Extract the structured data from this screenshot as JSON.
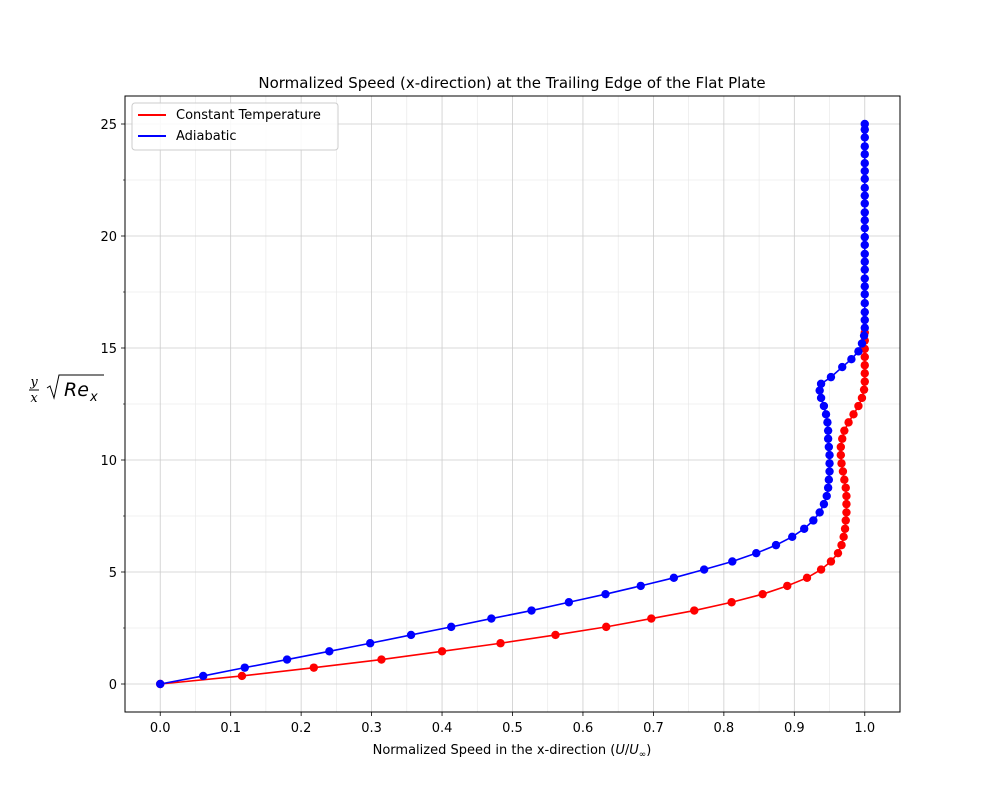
{
  "chart_data": {
    "type": "line",
    "title": "Normalized Speed (x-direction) at the Trailing Edge of the Flat Plate",
    "xlabel": "Normalized Speed in the x-direction (U/U∞)",
    "ylabel": "y/x √Reₓ",
    "xlim": [
      -0.05,
      1.05
    ],
    "ylim": [
      -1.25,
      26.25
    ],
    "xticks": [
      0.0,
      0.1,
      0.2,
      0.3,
      0.4,
      0.5,
      0.6,
      0.7,
      0.8,
      0.9,
      1.0
    ],
    "xtick_labels": [
      "0.0",
      "0.1",
      "0.2",
      "0.3",
      "0.4",
      "0.5",
      "0.6",
      "0.7",
      "0.8",
      "0.9",
      "1.0"
    ],
    "yticks": [
      0,
      5,
      10,
      15,
      20,
      25
    ],
    "ytick_labels": [
      "0",
      "5",
      "10",
      "15",
      "20",
      "25"
    ],
    "grid": true,
    "minor_grid": true,
    "legend_position": "top-left",
    "series": [
      {
        "name": "Constant Temperature",
        "color": "#ff0000",
        "marker": "circle",
        "points": [
          [
            0.0,
            0.0
          ],
          [
            0.116,
            0.36
          ],
          [
            0.218,
            0.73
          ],
          [
            0.314,
            1.09
          ],
          [
            0.4,
            1.46
          ],
          [
            0.483,
            1.82
          ],
          [
            0.561,
            2.19
          ],
          [
            0.633,
            2.55
          ],
          [
            0.697,
            2.92
          ],
          [
            0.758,
            3.28
          ],
          [
            0.811,
            3.65
          ],
          [
            0.855,
            4.01
          ],
          [
            0.89,
            4.38
          ],
          [
            0.918,
            4.74
          ],
          [
            0.938,
            5.11
          ],
          [
            0.952,
            5.47
          ],
          [
            0.962,
            5.84
          ],
          [
            0.967,
            6.2
          ],
          [
            0.97,
            6.57
          ],
          [
            0.972,
            6.93
          ],
          [
            0.973,
            7.3
          ],
          [
            0.974,
            7.66
          ],
          [
            0.974,
            8.03
          ],
          [
            0.974,
            8.39
          ],
          [
            0.973,
            8.76
          ],
          [
            0.971,
            9.12
          ],
          [
            0.969,
            9.49
          ],
          [
            0.967,
            9.85
          ],
          [
            0.966,
            10.22
          ],
          [
            0.966,
            10.58
          ],
          [
            0.968,
            10.95
          ],
          [
            0.971,
            11.31
          ],
          [
            0.977,
            11.68
          ],
          [
            0.984,
            12.04
          ],
          [
            0.991,
            12.41
          ],
          [
            0.996,
            12.77
          ],
          [
            0.999,
            13.14
          ],
          [
            1.0,
            13.5
          ],
          [
            1.0,
            13.87
          ],
          [
            1.0,
            14.23
          ],
          [
            1.0,
            14.6
          ],
          [
            1.0,
            14.96
          ],
          [
            1.0,
            15.33
          ],
          [
            1.0,
            15.69
          ]
        ]
      },
      {
        "name": "Adiabatic",
        "color": "#0000ff",
        "marker": "circle",
        "points": [
          [
            0.0,
            0.0
          ],
          [
            0.061,
            0.36
          ],
          [
            0.12,
            0.73
          ],
          [
            0.18,
            1.09
          ],
          [
            0.24,
            1.46
          ],
          [
            0.298,
            1.82
          ],
          [
            0.356,
            2.19
          ],
          [
            0.413,
            2.55
          ],
          [
            0.47,
            2.92
          ],
          [
            0.527,
            3.28
          ],
          [
            0.58,
            3.65
          ],
          [
            0.632,
            4.01
          ],
          [
            0.682,
            4.38
          ],
          [
            0.729,
            4.74
          ],
          [
            0.772,
            5.11
          ],
          [
            0.812,
            5.47
          ],
          [
            0.846,
            5.84
          ],
          [
            0.874,
            6.2
          ],
          [
            0.897,
            6.57
          ],
          [
            0.914,
            6.93
          ],
          [
            0.927,
            7.3
          ],
          [
            0.936,
            7.66
          ],
          [
            0.942,
            8.03
          ],
          [
            0.946,
            8.39
          ],
          [
            0.948,
            8.76
          ],
          [
            0.949,
            9.12
          ],
          [
            0.95,
            9.49
          ],
          [
            0.95,
            9.85
          ],
          [
            0.95,
            10.22
          ],
          [
            0.949,
            10.58
          ],
          [
            0.948,
            10.95
          ],
          [
            0.948,
            11.31
          ],
          [
            0.947,
            11.68
          ],
          [
            0.945,
            12.04
          ],
          [
            0.942,
            12.41
          ],
          [
            0.938,
            12.77
          ],
          [
            0.936,
            13.1
          ],
          [
            0.938,
            13.4
          ],
          [
            0.952,
            13.7
          ],
          [
            0.968,
            14.15
          ],
          [
            0.981,
            14.5
          ],
          [
            0.991,
            14.85
          ],
          [
            0.996,
            15.2
          ],
          [
            0.999,
            15.55
          ],
          [
            1.0,
            15.9
          ],
          [
            1.0,
            16.25
          ],
          [
            1.0,
            16.6
          ],
          [
            1.0,
            17.0
          ],
          [
            1.0,
            17.4
          ],
          [
            1.0,
            17.75
          ],
          [
            1.0,
            18.1
          ],
          [
            1.0,
            18.5
          ],
          [
            1.0,
            18.85
          ],
          [
            1.0,
            19.2
          ],
          [
            1.0,
            19.6
          ],
          [
            1.0,
            19.95
          ],
          [
            1.0,
            20.35
          ],
          [
            1.0,
            20.7
          ],
          [
            1.0,
            21.05
          ],
          [
            1.0,
            21.45
          ],
          [
            1.0,
            21.8
          ],
          [
            1.0,
            22.15
          ],
          [
            1.0,
            22.55
          ],
          [
            1.0,
            22.9
          ],
          [
            1.0,
            23.25
          ],
          [
            1.0,
            23.65
          ],
          [
            1.0,
            24.0
          ],
          [
            1.0,
            24.4
          ],
          [
            1.0,
            24.75
          ],
          [
            1.0,
            25.0
          ]
        ]
      }
    ]
  }
}
